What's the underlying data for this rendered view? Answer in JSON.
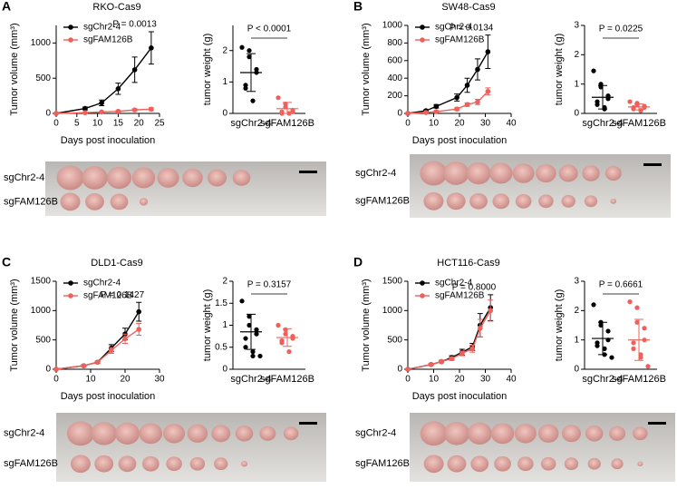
{
  "chart_data": [
    {
      "type": "line",
      "panel": "A",
      "title": "RKO-Cas9",
      "xlabel": "Days post inoculation",
      "ylabel": "Tumor volume (mm³)",
      "annotation": "P = 0.0013",
      "x": [
        0,
        7,
        11,
        15,
        19,
        23
      ],
      "xlim": [
        0,
        25
      ],
      "xticks": [
        0,
        5,
        10,
        15,
        20,
        25
      ],
      "ylim": [
        0,
        1250
      ],
      "yticks": [
        0,
        500,
        1000
      ],
      "series": [
        {
          "name": "sgChr2-4",
          "color": "#000000",
          "values": [
            0,
            70,
            150,
            350,
            620,
            930
          ],
          "errors": [
            0,
            20,
            40,
            80,
            180,
            230
          ]
        },
        {
          "name": "sgFAM126B",
          "color": "#f0605a",
          "values": [
            0,
            10,
            20,
            30,
            50,
            60
          ],
          "errors": [
            0,
            5,
            8,
            10,
            15,
            20
          ]
        }
      ]
    },
    {
      "type": "strip",
      "ylabel": "tumor weight (g)",
      "annotation": "P < 0.0001",
      "categories": [
        "sgChr2-4",
        "sgFAM126B"
      ],
      "ylim": [
        0,
        2.8
      ],
      "yticks": [
        0,
        1,
        2
      ],
      "series": [
        {
          "color": "#000000",
          "values": [
            2.1,
            2.0,
            1.8,
            1.4,
            1.3,
            0.9,
            0.8,
            0.4
          ],
          "mean": 1.3,
          "sd": 0.6
        },
        {
          "color": "#f0605a",
          "values": [
            0.5,
            0.3,
            0.2,
            0.1,
            0.05,
            0.05,
            0.0,
            0.0
          ],
          "mean": 0.15,
          "sd": 0.2
        }
      ]
    },
    {
      "type": "line",
      "panel": "B",
      "title": "SW48-Cas9",
      "xlabel": "Days post inoculation",
      "ylabel": "Tumor volume (mm³)",
      "annotation": "P = 0.0134",
      "x": [
        0,
        7,
        11,
        19,
        23,
        27,
        31
      ],
      "xlim": [
        0,
        40
      ],
      "xticks": [
        0,
        10,
        20,
        30,
        40
      ],
      "ylim": [
        0,
        1000
      ],
      "yticks": [
        0,
        200,
        400,
        600,
        800,
        1000
      ],
      "series": [
        {
          "name": "sgChr2-4",
          "color": "#000000",
          "values": [
            0,
            30,
            80,
            180,
            320,
            500,
            700
          ],
          "errors": [
            0,
            10,
            20,
            40,
            80,
            120,
            190
          ]
        },
        {
          "name": "sgFAM126B",
          "color": "#f0605a",
          "values": [
            0,
            10,
            20,
            50,
            100,
            130,
            250
          ],
          "errors": [
            0,
            5,
            10,
            15,
            20,
            30,
            40
          ]
        }
      ]
    },
    {
      "type": "strip",
      "ylabel": "tumor weight (g)",
      "annotation": "P = 0.0225",
      "categories": [
        "sgChr2-4",
        "sgFAM126B"
      ],
      "ylim": [
        0,
        3
      ],
      "yticks": [
        0,
        1,
        2,
        3
      ],
      "series": [
        {
          "color": "#000000",
          "values": [
            1.45,
            1.0,
            0.9,
            0.6,
            0.5,
            0.4,
            0.3,
            0.2,
            0.15
          ],
          "mean": 0.55,
          "sd": 0.4
        },
        {
          "color": "#f0605a",
          "values": [
            0.4,
            0.35,
            0.3,
            0.25,
            0.2,
            0.2,
            0.15,
            0.1,
            0.1
          ],
          "mean": 0.22,
          "sd": 0.1
        }
      ]
    },
    {
      "type": "line",
      "panel": "C",
      "title": "DLD1-Cas9",
      "xlabel": "Days post inoculation",
      "ylabel": "Tumor volume (mm³)",
      "annotation": "P = 0.1427",
      "x": [
        0,
        8,
        12,
        16,
        20,
        24
      ],
      "xlim": [
        0,
        30
      ],
      "xticks": [
        0,
        10,
        20,
        30
      ],
      "ylim": [
        0,
        1500
      ],
      "yticks": [
        0,
        500,
        1000,
        1500
      ],
      "series": [
        {
          "name": "sgChr2-4",
          "color": "#000000",
          "values": [
            0,
            60,
            120,
            360,
            600,
            980
          ],
          "errors": [
            0,
            15,
            20,
            60,
            100,
            160
          ]
        },
        {
          "name": "sgFAM126B",
          "color": "#f0605a",
          "values": [
            0,
            60,
            120,
            320,
            520,
            680
          ],
          "errors": [
            0,
            15,
            20,
            50,
            80,
            100
          ]
        }
      ]
    },
    {
      "type": "strip",
      "ylabel": "tumor weight (g)",
      "annotation": "P = 0.3157",
      "categories": [
        "sgChr2-4",
        "sgFAM126B"
      ],
      "ylim": [
        0,
        2
      ],
      "yticks": [
        0,
        0.5,
        1,
        1.5,
        2
      ],
      "series": [
        {
          "color": "#000000",
          "values": [
            1.55,
            1.2,
            1.0,
            0.9,
            0.8,
            0.7,
            0.5,
            0.4,
            0.3,
            0.3
          ],
          "mean": 0.85,
          "sd": 0.4
        },
        {
          "color": "#f0605a",
          "values": [
            1.0,
            0.9,
            0.8,
            0.75,
            0.7,
            0.65,
            0.6,
            0.4
          ],
          "mean": 0.72,
          "sd": 0.2
        }
      ]
    },
    {
      "type": "line",
      "panel": "D",
      "title": "HCT116-Cas9",
      "xlabel": "Days post inoculation",
      "ylabel": "Tumor volume (mm³)",
      "annotation": "P = 0.8000",
      "x": [
        0,
        9,
        13,
        17,
        21,
        25,
        28,
        32
      ],
      "xlim": [
        0,
        40
      ],
      "xticks": [
        0,
        10,
        20,
        30,
        40
      ],
      "ylim": [
        0,
        1500
      ],
      "yticks": [
        0,
        500,
        1000,
        1500
      ],
      "series": [
        {
          "name": "sgChr2-4",
          "color": "#000000",
          "values": [
            0,
            80,
            130,
            200,
            290,
            380,
            750,
            1050
          ],
          "errors": [
            0,
            15,
            20,
            30,
            50,
            60,
            200,
            220
          ]
        },
        {
          "name": "sgFAM126B",
          "color": "#f0605a",
          "values": [
            0,
            80,
            130,
            180,
            270,
            350,
            700,
            1000
          ],
          "errors": [
            0,
            15,
            20,
            30,
            40,
            60,
            150,
            180
          ]
        }
      ]
    },
    {
      "type": "strip",
      "ylabel": "tumor weight (g)",
      "annotation": "P = 0.6661",
      "categories": [
        "sgChr2-4",
        "sgFAM126B"
      ],
      "ylim": [
        0,
        3
      ],
      "yticks": [
        0,
        1,
        2,
        3
      ],
      "series": [
        {
          "color": "#000000",
          "values": [
            2.2,
            1.6,
            1.5,
            1.3,
            1.0,
            0.9,
            0.8,
            0.7,
            0.5,
            0.4
          ],
          "mean": 1.05,
          "sd": 0.55
        },
        {
          "color": "#f0605a",
          "values": [
            2.3,
            2.1,
            1.6,
            1.4,
            1.0,
            0.9,
            0.7,
            0.5,
            0.4,
            0.1
          ],
          "mean": 1.0,
          "sd": 0.7
        }
      ]
    }
  ],
  "photos": [
    {
      "rows": [
        "sgChr2-4",
        "sgFAM126B"
      ]
    },
    {
      "rows": [
        "sgChr2-4",
        "sgFAM126B"
      ]
    },
    {
      "rows": [
        "sgChr2-4",
        "sgFAM126B"
      ]
    },
    {
      "rows": [
        "sgChr2-4",
        "sgFAM126B"
      ]
    }
  ]
}
